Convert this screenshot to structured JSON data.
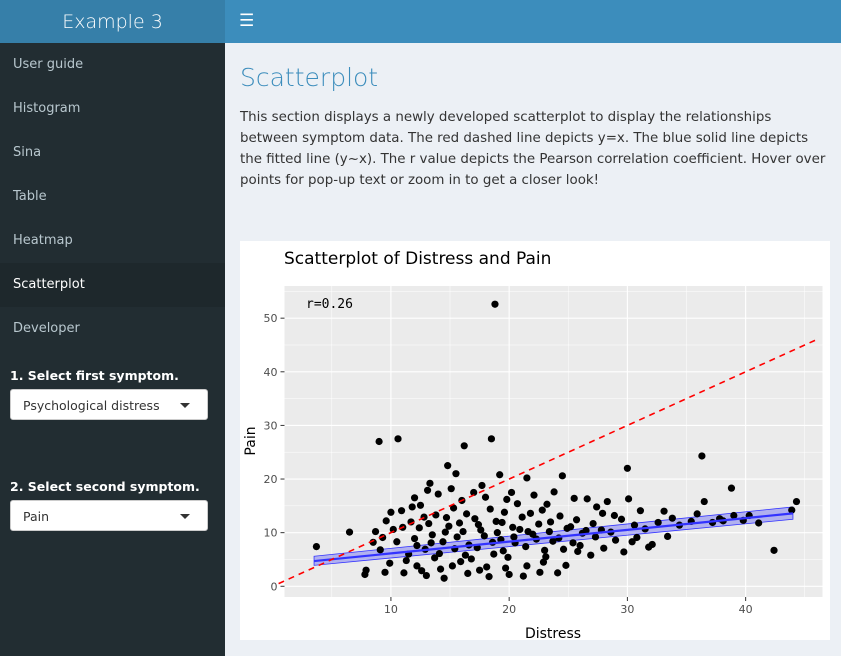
{
  "app": {
    "title": "Example 3"
  },
  "sidebar": {
    "items": [
      {
        "label": "User guide",
        "active": false
      },
      {
        "label": "Histogram",
        "active": false
      },
      {
        "label": "Sina",
        "active": false
      },
      {
        "label": "Table",
        "active": false
      },
      {
        "label": "Heatmap",
        "active": false
      },
      {
        "label": "Scatterplot",
        "active": true
      },
      {
        "label": "Developer",
        "active": false
      }
    ],
    "first_symptom": {
      "label": "1. Select first symptom.",
      "value": "Psychological distress"
    },
    "second_symptom": {
      "label": "2. Select second symptom.",
      "value": "Pain"
    }
  },
  "main": {
    "title": "Scatterplot",
    "description": "This section displays a newly developed scatterplot to display the relationships between symptom data. The red dashed line depicts y=x. The blue solid line depicts the fitted line (y~x). The r value depicts the Pearson correlation coefficient. Hover over points for pop-up text or zoom in to get a closer look!"
  },
  "colors": {
    "identity_line": "#ff0000",
    "fit_line": "#3333ff",
    "points": "#000000",
    "panel_bg": "#ebebeb"
  },
  "chart_data": {
    "type": "scatter",
    "title": "Scatterplot of Distress and Pain",
    "xlabel": "Distress",
    "ylabel": "Pain",
    "annotation": "r=0.26",
    "xlim": [
      1,
      46.5
    ],
    "ylim": [
      -2,
      56
    ],
    "xticks": [
      10,
      20,
      30,
      40
    ],
    "yticks": [
      0,
      10,
      20,
      30,
      40,
      50
    ],
    "identity_line": {
      "x": [
        0.5,
        46
      ],
      "y": [
        0.5,
        46
      ]
    },
    "fit_line": {
      "x": [
        3.5,
        44
      ],
      "y": [
        4.7,
        13.6
      ]
    },
    "confidence_band": {
      "x": [
        3.5,
        44
      ],
      "lower": [
        3.9,
        12.5
      ],
      "upper": [
        5.6,
        14.8
      ]
    },
    "grid": true,
    "points": [
      [
        18.8,
        52.6
      ],
      [
        9,
        27
      ],
      [
        10.6,
        27.5
      ],
      [
        16.2,
        26.2
      ],
      [
        18.5,
        27.5
      ],
      [
        36.3,
        24.3
      ],
      [
        30,
        22
      ],
      [
        14.8,
        22.5
      ],
      [
        15.5,
        21
      ],
      [
        19.2,
        20.8
      ],
      [
        38.8,
        18.3
      ],
      [
        17.7,
        18.8
      ],
      [
        13.3,
        19.2
      ],
      [
        21.5,
        20.2
      ],
      [
        24.5,
        20.6
      ],
      [
        14,
        17.2
      ],
      [
        12,
        16.5
      ],
      [
        16,
        16
      ],
      [
        18,
        16.6
      ],
      [
        20.2,
        17.5
      ],
      [
        22.1,
        17
      ],
      [
        23.2,
        15.3
      ],
      [
        25.5,
        16.4
      ],
      [
        26.6,
        16.3
      ],
      [
        27.4,
        14.8
      ],
      [
        28.3,
        15.8
      ],
      [
        30.1,
        16.3
      ],
      [
        31.1,
        14.1
      ],
      [
        33.1,
        14
      ],
      [
        35.9,
        13.5
      ],
      [
        36.5,
        15.8
      ],
      [
        44.3,
        15.8
      ],
      [
        39,
        13.2
      ],
      [
        38.1,
        12.2
      ],
      [
        39.8,
        12.3
      ],
      [
        41.1,
        11.8
      ],
      [
        42.4,
        6.7
      ],
      [
        33.4,
        9.3
      ],
      [
        32.1,
        7.8
      ],
      [
        30.4,
        8.3
      ],
      [
        29.5,
        12.5
      ],
      [
        8.5,
        8.2
      ],
      [
        6.5,
        10.1
      ],
      [
        3.7,
        7.4
      ],
      [
        9.1,
        6.8
      ],
      [
        7.9,
        3
      ],
      [
        7.8,
        2.2
      ],
      [
        9.5,
        2.6
      ],
      [
        12.2,
        3.8
      ],
      [
        14.5,
        1.5
      ],
      [
        17.5,
        3
      ],
      [
        20,
        2.2
      ],
      [
        21.5,
        3.8
      ],
      [
        22.6,
        2.6
      ],
      [
        24.1,
        2.5
      ],
      [
        25.8,
        6.5
      ],
      [
        26.9,
        5.8
      ],
      [
        28,
        7.1
      ],
      [
        27.3,
        9.2
      ],
      [
        24.9,
        10.8
      ],
      [
        23.7,
        8.4
      ],
      [
        22.5,
        11.6
      ],
      [
        21.1,
        12.9
      ],
      [
        20.3,
        11
      ],
      [
        19.3,
        8.7
      ],
      [
        18.7,
        6
      ],
      [
        17.6,
        10.5
      ],
      [
        16.4,
        13.5
      ],
      [
        15.6,
        9.2
      ],
      [
        14.9,
        11.2
      ],
      [
        14.1,
        6.1
      ],
      [
        13.5,
        9.6
      ],
      [
        12.8,
        12.9
      ],
      [
        12,
        8.9
      ],
      [
        11.5,
        6
      ],
      [
        10.9,
        14.1
      ],
      [
        10.2,
        10.6
      ],
      [
        9.6,
        12.2
      ],
      [
        8.7,
        10.2
      ],
      [
        9.9,
        4.3
      ],
      [
        11.1,
        2.5
      ],
      [
        13,
        2
      ],
      [
        15.2,
        3.8
      ],
      [
        16.8,
        5.1
      ],
      [
        18.1,
        3.6
      ],
      [
        19.9,
        5.4
      ],
      [
        21.4,
        7.4
      ],
      [
        23.1,
        5.5
      ],
      [
        24.8,
        3.9
      ],
      [
        26.2,
        9.9
      ],
      [
        27.8,
        10.5
      ],
      [
        29,
        8.6
      ],
      [
        31.5,
        10.7
      ],
      [
        34.4,
        11.4
      ],
      [
        37.2,
        11.9
      ],
      [
        12.5,
        15.1
      ],
      [
        13.8,
        13.3
      ],
      [
        15.3,
        14.6
      ],
      [
        17.1,
        12.6
      ],
      [
        18.4,
        14.4
      ],
      [
        19.6,
        13.8
      ],
      [
        20.7,
        15.4
      ],
      [
        22.8,
        14.2
      ],
      [
        24.3,
        13.1
      ],
      [
        25.7,
        12.4
      ],
      [
        16.6,
        7.7
      ],
      [
        17.9,
        9.4
      ],
      [
        15.9,
        4.6
      ],
      [
        13.7,
        5.3
      ],
      [
        12.4,
        10.9
      ],
      [
        11.7,
        12
      ],
      [
        14.4,
        8.3
      ],
      [
        19,
        10
      ],
      [
        20.5,
        8.1
      ],
      [
        22,
        9.7
      ],
      [
        23.5,
        12
      ],
      [
        26,
        7.6
      ],
      [
        28.6,
        10.1
      ],
      [
        30.8,
        9.1
      ],
      [
        32.6,
        11.9
      ],
      [
        9.3,
        9.1
      ],
      [
        10.5,
        8.3
      ],
      [
        11.3,
        4.8
      ],
      [
        12.9,
        6.9
      ],
      [
        13.2,
        11.7
      ],
      [
        14.7,
        12.8
      ],
      [
        15.8,
        11.8
      ],
      [
        16.1,
        10.2
      ],
      [
        17.3,
        7.2
      ],
      [
        18.9,
        12.1
      ],
      [
        19.5,
        6.6
      ],
      [
        20.9,
        10.6
      ],
      [
        21.8,
        13.6
      ],
      [
        23.4,
        10.2
      ],
      [
        24.6,
        6.9
      ],
      [
        25.2,
        11.1
      ],
      [
        27.1,
        11.7
      ],
      [
        29.7,
        6.4
      ],
      [
        31.8,
        7.3
      ],
      [
        12.6,
        2.9
      ],
      [
        14.2,
        3.2
      ],
      [
        16.5,
        2.4
      ],
      [
        18.3,
        1.8
      ],
      [
        19.7,
        3.4
      ],
      [
        21.2,
        1.9
      ],
      [
        22.9,
        4.5
      ],
      [
        17,
        17.5
      ],
      [
        15.1,
        18.2
      ],
      [
        13.1,
        17.9
      ],
      [
        11.8,
        14.8
      ],
      [
        19.8,
        16.2
      ],
      [
        23.8,
        17.6
      ],
      [
        27.9,
        13.6
      ],
      [
        10,
        13.8
      ],
      [
        11,
        11
      ],
      [
        12.2,
        7.6
      ],
      [
        13.4,
        8.1
      ],
      [
        14.6,
        10.1
      ],
      [
        15.4,
        7
      ],
      [
        16.3,
        5.8
      ],
      [
        17.4,
        11.5
      ],
      [
        18.6,
        8.2
      ],
      [
        19.4,
        11.9
      ],
      [
        20.4,
        9.2
      ],
      [
        21.6,
        10.2
      ],
      [
        22.3,
        8.8
      ],
      [
        23,
        6.7
      ],
      [
        24.2,
        9
      ],
      [
        25.4,
        8.1
      ],
      [
        26.5,
        10.4
      ],
      [
        28.9,
        13.2
      ],
      [
        30.6,
        11.4
      ],
      [
        33.8,
        12.7
      ],
      [
        35.4,
        12.1
      ],
      [
        37.8,
        12.6
      ],
      [
        40.3,
        13.2
      ],
      [
        43.9,
        14.2
      ]
    ]
  }
}
